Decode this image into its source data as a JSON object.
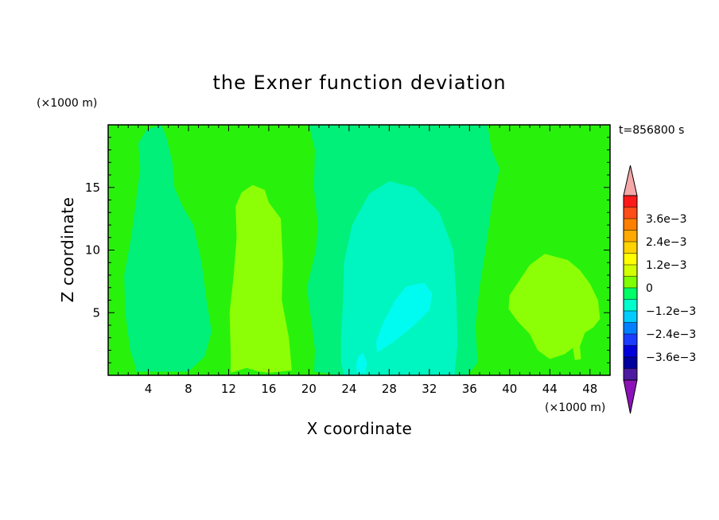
{
  "chart_data": {
    "type": "heatmap",
    "title": "the Exner function deviation",
    "xlabel": "X coordinate",
    "ylabel": "Z coordinate",
    "x_unit": "(×1000 m)",
    "y_unit": "(×1000 m)",
    "time_label": "t=856800 s",
    "xlim": [
      0,
      50
    ],
    "ylim": [
      0,
      20
    ],
    "x_ticks": [
      4,
      8,
      12,
      16,
      20,
      24,
      28,
      32,
      36,
      40,
      44,
      48
    ],
    "y_ticks": [
      5,
      10,
      15
    ],
    "grid": false,
    "legend": "right colorbar",
    "colorbar": {
      "labels": [
        "3.6e−3",
        "2.4e−3",
        "1.2e−3",
        "0",
        "−1.2e−3",
        "−2.4e−3",
        "−3.6e−3"
      ],
      "label_values": [
        0.0036,
        0.0024,
        0.0012,
        0,
        -0.0012,
        -0.0024,
        -0.0036
      ],
      "levels": [
        0.0042,
        0.0036,
        0.003,
        0.0024,
        0.0018,
        0.0012,
        0.0006,
        0,
        -0.0006,
        -0.0012,
        -0.0018,
        -0.0024,
        -0.003,
        -0.0036,
        -0.0042
      ],
      "colors": [
        "#ff1a1a",
        "#ff4d1a",
        "#ff8000",
        "#ffaa00",
        "#ffd400",
        "#ffff00",
        "#d4ff00",
        "#80ff00",
        "#00ff66",
        "#00ffcc",
        "#00ccff",
        "#0080ff",
        "#1a3dff",
        "#0000dd",
        "#00009e",
        "#4b1aa0"
      ],
      "over_color": "#f5a8a8",
      "under_color": "#8c12b8"
    },
    "regions": [
      {
        "name": "background",
        "value": 0.0,
        "color": "#28f20c",
        "outline": [
          [
            0,
            0
          ],
          [
            50,
            0
          ],
          [
            50,
            20
          ],
          [
            0,
            20
          ]
        ]
      },
      {
        "name": "left-negative-column",
        "value": -0.0003,
        "color": "#00f07a",
        "outline": [
          [
            2.8,
            0.3
          ],
          [
            8,
            0.3
          ],
          [
            9.6,
            1.5
          ],
          [
            10.3,
            3.5
          ],
          [
            9.8,
            6
          ],
          [
            9.3,
            9
          ],
          [
            8.5,
            12
          ],
          [
            7.4,
            13.5
          ],
          [
            6.6,
            15
          ],
          [
            6.4,
            17
          ],
          [
            5.8,
            19
          ],
          [
            5.3,
            20
          ],
          [
            3.8,
            19.6
          ],
          [
            3,
            18.5
          ],
          [
            3.2,
            16.5
          ],
          [
            2.8,
            14
          ],
          [
            2.3,
            11
          ],
          [
            1.6,
            8
          ],
          [
            1.7,
            5
          ],
          [
            2.2,
            2
          ],
          [
            2.6,
            1
          ]
        ]
      },
      {
        "name": "central-negative-band",
        "value": -0.0003,
        "color": "#00f07a",
        "outline": [
          [
            20,
            20
          ],
          [
            26,
            20
          ],
          [
            31.5,
            20
          ],
          [
            35.5,
            20
          ],
          [
            37.8,
            20
          ],
          [
            38.2,
            18
          ],
          [
            39,
            16.5
          ],
          [
            38.3,
            14
          ],
          [
            37.6,
            10
          ],
          [
            37,
            7
          ],
          [
            36.6,
            4
          ],
          [
            36.8,
            1
          ],
          [
            35.8,
            0
          ],
          [
            33,
            0
          ],
          [
            28,
            0
          ],
          [
            23,
            0
          ],
          [
            20.5,
            0.3
          ],
          [
            20.6,
            2
          ],
          [
            20.3,
            4
          ],
          [
            19.8,
            7
          ],
          [
            20.7,
            10
          ],
          [
            20.9,
            12
          ],
          [
            20.5,
            15
          ],
          [
            20.6,
            18
          ]
        ]
      },
      {
        "name": "central-deeper-negative",
        "value": -0.0009,
        "color": "#00f6c0",
        "outline": [
          [
            23.5,
            0
          ],
          [
            34.5,
            0
          ],
          [
            34.8,
            2.5
          ],
          [
            34.7,
            6
          ],
          [
            34.4,
            10
          ],
          [
            33,
            13
          ],
          [
            30.5,
            15
          ],
          [
            28,
            15.5
          ],
          [
            26,
            14.5
          ],
          [
            24.3,
            12
          ],
          [
            23.5,
            9
          ],
          [
            23.4,
            6
          ],
          [
            23.2,
            3
          ],
          [
            23.2,
            1
          ]
        ]
      },
      {
        "name": "central-core-negative",
        "value": -0.0015,
        "color": "#00fbf0",
        "outline": [
          [
            26.8,
            1.8
          ],
          [
            28.5,
            2.7
          ],
          [
            30.5,
            4
          ],
          [
            32,
            5.2
          ],
          [
            32.3,
            6.5
          ],
          [
            31.5,
            7.4
          ],
          [
            29.7,
            7.1
          ],
          [
            28.6,
            6
          ],
          [
            27.4,
            4.2
          ],
          [
            26.7,
            2.7
          ]
        ]
      },
      {
        "name": "small-negative-spot",
        "value": -0.0015,
        "color": "#00fbf0",
        "outline": [
          [
            24.8,
            0.2
          ],
          [
            25.6,
            0.2
          ],
          [
            25.8,
            1
          ],
          [
            25.4,
            1.8
          ],
          [
            24.9,
            1.5
          ],
          [
            24.7,
            0.8
          ]
        ]
      },
      {
        "name": "left-positive-column",
        "value": 0.0004,
        "color": "#8cff06",
        "outline": [
          [
            12.2,
            0.2
          ],
          [
            13.8,
            0.6
          ],
          [
            15,
            0.3
          ],
          [
            16,
            0.2
          ],
          [
            18.3,
            0.4
          ],
          [
            18,
            3
          ],
          [
            17.3,
            6
          ],
          [
            17.4,
            9
          ],
          [
            17.2,
            12.5
          ],
          [
            16,
            13.8
          ],
          [
            15.6,
            14.8
          ],
          [
            14.4,
            15.2
          ],
          [
            13.3,
            14.6
          ],
          [
            12.7,
            13.5
          ],
          [
            12.8,
            11
          ],
          [
            12.5,
            8
          ],
          [
            12.1,
            5
          ],
          [
            12.2,
            2
          ]
        ]
      },
      {
        "name": "right-positive-blob",
        "value": 0.0004,
        "color": "#8cff06",
        "outline": [
          [
            40.5,
            7
          ],
          [
            42,
            8.8
          ],
          [
            43.5,
            9.7
          ],
          [
            45.8,
            9.2
          ],
          [
            47,
            8.4
          ],
          [
            48,
            7.3
          ],
          [
            48.8,
            6
          ],
          [
            49,
            4.5
          ],
          [
            48.3,
            3.8
          ],
          [
            47.5,
            3.4
          ],
          [
            47,
            2.3
          ],
          [
            47.1,
            1.3
          ],
          [
            46.5,
            1.2
          ],
          [
            46.3,
            2.2
          ],
          [
            45.5,
            1.7
          ],
          [
            44,
            1.3
          ],
          [
            42.8,
            2
          ],
          [
            42,
            3.3
          ],
          [
            40.8,
            4.3
          ],
          [
            39.9,
            5.3
          ],
          [
            40,
            6.4
          ]
        ]
      }
    ]
  }
}
